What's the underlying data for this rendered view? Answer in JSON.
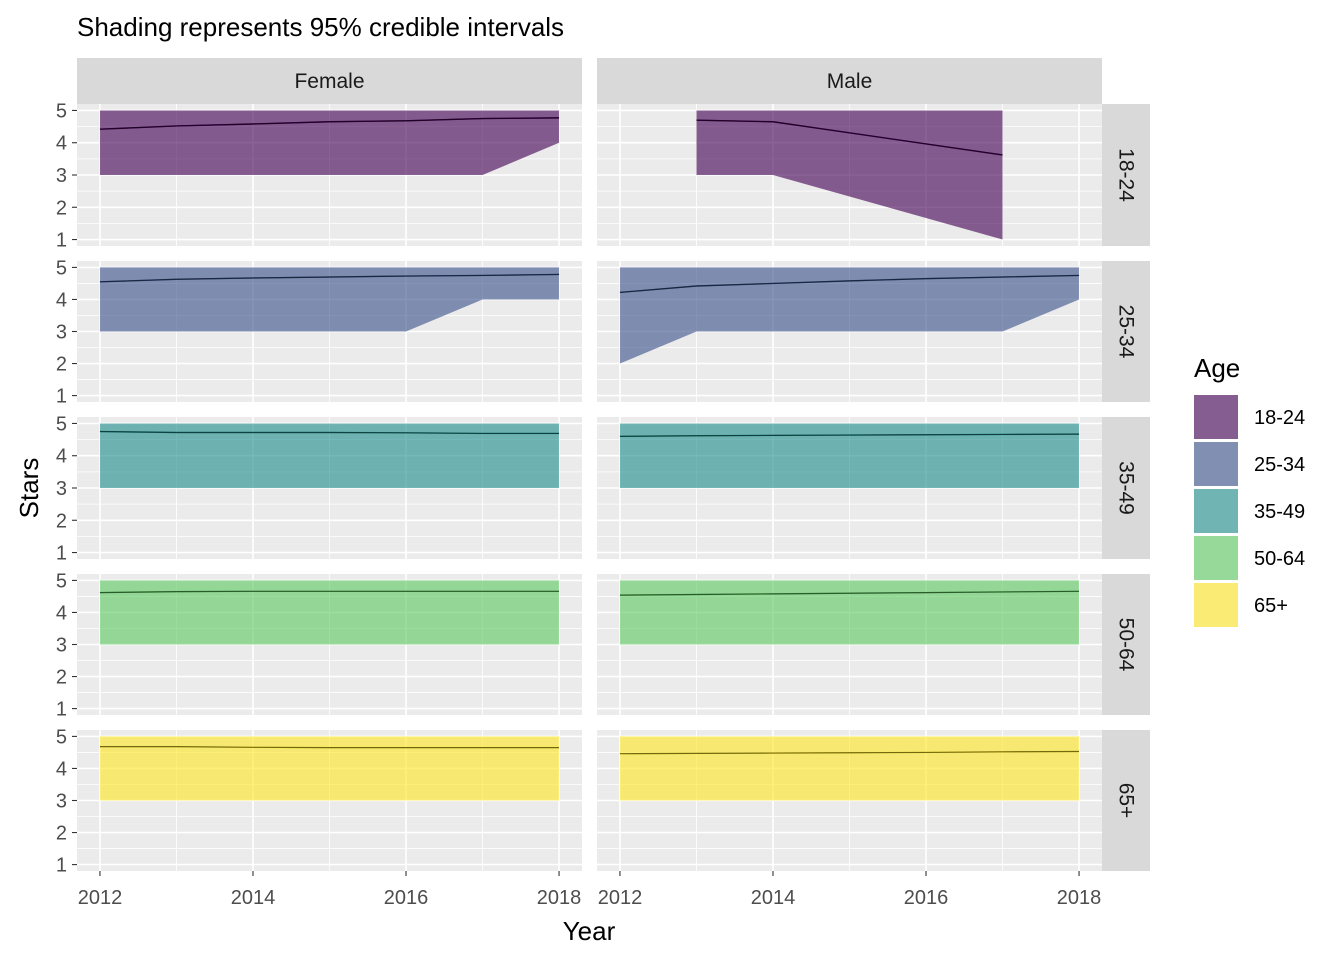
{
  "title": "Shading represents 95% credible intervals",
  "chart_data": {
    "type": "area",
    "xlabel": "Year",
    "ylabel": "Stars",
    "xlim": [
      2011.7,
      2018.3
    ],
    "ylim": [
      0.8,
      5.2
    ],
    "x_ticks": [
      2012,
      2014,
      2016,
      2018
    ],
    "y_ticks": [
      1,
      2,
      3,
      4,
      5
    ],
    "grid": true,
    "columns": [
      "Female",
      "Male"
    ],
    "rows": [
      "18-24",
      "25-34",
      "35-49",
      "50-64",
      "65+"
    ],
    "legend": {
      "title": "Age",
      "position": "right",
      "entries": [
        "18-24",
        "25-34",
        "35-49",
        "50-64",
        "65+"
      ]
    },
    "colors": {
      "18-24": "#440154",
      "25-34": "#3b528b",
      "35-49": "#21908c",
      "50-64": "#5ec962",
      "65+": "#fde725"
    },
    "panels": [
      {
        "sex": "Female",
        "age": "18-24",
        "x": [
          2012,
          2013,
          2014,
          2015,
          2016,
          2017,
          2018
        ],
        "median": [
          4.42,
          4.52,
          4.58,
          4.65,
          4.68,
          4.75,
          4.77
        ],
        "lower": [
          3,
          3,
          3,
          3,
          3,
          3,
          4
        ],
        "upper": [
          5,
          5,
          5,
          5,
          5,
          5,
          5
        ]
      },
      {
        "sex": "Male",
        "age": "18-24",
        "x": [
          2013,
          2014,
          2017
        ],
        "median": [
          4.7,
          4.65,
          3.62
        ],
        "lower": [
          3,
          3,
          1
        ],
        "upper": [
          5,
          5,
          5
        ]
      },
      {
        "sex": "Female",
        "age": "25-34",
        "x": [
          2012,
          2013,
          2014,
          2015,
          2016,
          2017,
          2018
        ],
        "median": [
          4.55,
          4.63,
          4.67,
          4.7,
          4.73,
          4.75,
          4.78
        ],
        "lower": [
          3,
          3,
          3,
          3,
          3,
          4,
          4
        ],
        "upper": [
          5,
          5,
          5,
          5,
          5,
          5,
          5
        ]
      },
      {
        "sex": "Male",
        "age": "25-34",
        "x": [
          2012,
          2013,
          2014,
          2015,
          2016,
          2017,
          2018
        ],
        "median": [
          4.22,
          4.42,
          4.5,
          4.58,
          4.65,
          4.7,
          4.75
        ],
        "lower": [
          2,
          3,
          3,
          3,
          3,
          3,
          4
        ],
        "upper": [
          5,
          5,
          5,
          5,
          5,
          5,
          5
        ]
      },
      {
        "sex": "Female",
        "age": "35-49",
        "x": [
          2012,
          2013,
          2014,
          2015,
          2016,
          2017,
          2018
        ],
        "median": [
          4.75,
          4.72,
          4.72,
          4.72,
          4.71,
          4.69,
          4.69
        ],
        "lower": [
          3,
          3,
          3,
          3,
          3,
          3,
          3
        ],
        "upper": [
          5,
          5,
          5,
          5,
          5,
          5,
          5
        ]
      },
      {
        "sex": "Male",
        "age": "35-49",
        "x": [
          2012,
          2013,
          2014,
          2015,
          2016,
          2017,
          2018
        ],
        "median": [
          4.6,
          4.62,
          4.63,
          4.64,
          4.65,
          4.66,
          4.67
        ],
        "lower": [
          3,
          3,
          3,
          3,
          3,
          3,
          3
        ],
        "upper": [
          5,
          5,
          5,
          5,
          5,
          5,
          5
        ]
      },
      {
        "sex": "Female",
        "age": "50-64",
        "x": [
          2012,
          2013,
          2014,
          2015,
          2016,
          2017,
          2018
        ],
        "median": [
          4.62,
          4.65,
          4.66,
          4.66,
          4.66,
          4.66,
          4.66
        ],
        "lower": [
          3,
          3,
          3,
          3,
          3,
          3,
          3
        ],
        "upper": [
          5,
          5,
          5,
          5,
          5,
          5,
          5
        ]
      },
      {
        "sex": "Male",
        "age": "50-64",
        "x": [
          2012,
          2013,
          2014,
          2015,
          2016,
          2017,
          2018
        ],
        "median": [
          4.54,
          4.56,
          4.58,
          4.6,
          4.62,
          4.64,
          4.66
        ],
        "lower": [
          3,
          3,
          3,
          3,
          3,
          3,
          3
        ],
        "upper": [
          5,
          5,
          5,
          5,
          5,
          5,
          5
        ]
      },
      {
        "sex": "Female",
        "age": "65+",
        "x": [
          2012,
          2013,
          2014,
          2015,
          2016,
          2017,
          2018
        ],
        "median": [
          4.68,
          4.68,
          4.66,
          4.65,
          4.65,
          4.65,
          4.65
        ],
        "lower": [
          3,
          3,
          3,
          3,
          3,
          3,
          3
        ],
        "upper": [
          5,
          5,
          5,
          5,
          5,
          5,
          5
        ]
      },
      {
        "sex": "Male",
        "age": "65+",
        "x": [
          2012,
          2013,
          2014,
          2015,
          2016,
          2017,
          2018
        ],
        "median": [
          4.46,
          4.47,
          4.48,
          4.49,
          4.5,
          4.52,
          4.53
        ],
        "lower": [
          3,
          3,
          3,
          3,
          3,
          3,
          3
        ],
        "upper": [
          5,
          5,
          5,
          5,
          5,
          5,
          5
        ]
      }
    ]
  }
}
